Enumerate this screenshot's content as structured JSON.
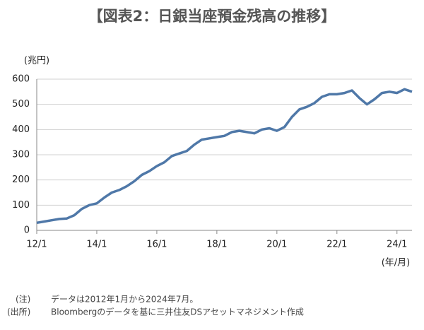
{
  "chart_data": {
    "type": "line",
    "title": "【図表2：日銀当座預金残高の推移】",
    "y_unit": "(兆円)",
    "x_unit": "(年/月)",
    "notes": [
      {
        "tag": "(注)",
        "text": "データは2012年1月から2024年7月。"
      },
      {
        "tag": "(出所)",
        "text": "Bloombergのデータを基に三井住友DSアセットマネジメント作成"
      }
    ],
    "x": [
      2012,
      2012.25,
      2012.5,
      2012.75,
      2013,
      2013.25,
      2013.5,
      2013.75,
      2014,
      2014.25,
      2014.5,
      2014.75,
      2015,
      2015.25,
      2015.5,
      2015.75,
      2016,
      2016.25,
      2016.5,
      2016.75,
      2017,
      2017.25,
      2017.5,
      2017.75,
      2018,
      2018.25,
      2018.5,
      2018.75,
      2019,
      2019.25,
      2019.5,
      2019.75,
      2020,
      2020.25,
      2020.5,
      2020.75,
      2021,
      2021.25,
      2021.5,
      2021.75,
      2022,
      2022.25,
      2022.5,
      2022.75,
      2023,
      2023.25,
      2023.5,
      2023.75,
      2024,
      2024.25,
      2024.5
    ],
    "series": [
      {
        "name": "日銀当座預金残高",
        "color": "#4f78a8",
        "values": [
          30,
          35,
          40,
          45,
          47,
          60,
          85,
          100,
          107,
          130,
          150,
          160,
          175,
          195,
          220,
          235,
          255,
          270,
          295,
          305,
          315,
          340,
          360,
          365,
          370,
          375,
          390,
          395,
          390,
          385,
          400,
          405,
          395,
          410,
          450,
          480,
          490,
          505,
          530,
          540,
          540,
          545,
          555,
          525,
          500,
          520,
          545,
          550,
          545,
          560,
          550
        ]
      }
    ],
    "xlim": [
      2012,
      2024.5
    ],
    "xticks": [
      {
        "value": 2012,
        "label": "12/1"
      },
      {
        "value": 2014,
        "label": "14/1"
      },
      {
        "value": 2016,
        "label": "16/1"
      },
      {
        "value": 2018,
        "label": "18/1"
      },
      {
        "value": 2020,
        "label": "20/1"
      },
      {
        "value": 2022,
        "label": "22/1"
      },
      {
        "value": 2024,
        "label": "24/1"
      }
    ],
    "ylim": [
      0,
      600
    ],
    "yticks": [
      0,
      100,
      200,
      300,
      400,
      500,
      600
    ],
    "grid": true
  }
}
